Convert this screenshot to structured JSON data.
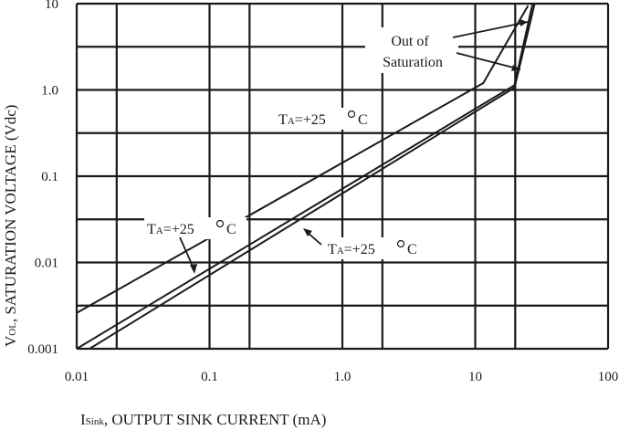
{
  "chart_data": {
    "type": "line",
    "title": "",
    "xlabel": {
      "main": "I",
      "sub": "Sink",
      "rest": ", OUTPUT SINK CURRENT (mA)"
    },
    "ylabel": {
      "main": "V",
      "sub": "OL",
      "rest": ", SATURATION VOLTAGE (Vdc)"
    },
    "x_scale": "log",
    "y_scale": "log",
    "xlim": [
      0.01,
      100
    ],
    "ylim": [
      0.001,
      10
    ],
    "x_ticks": [
      "0.01",
      "0.1",
      "1.0",
      "10",
      "100"
    ],
    "y_ticks": [
      "0.001",
      "0.01",
      "0.1",
      "1.0",
      "10"
    ],
    "grid": true,
    "series": [
      {
        "x": [
          0.01,
          11.5,
          25
        ],
        "y": [
          0.0026,
          1.2,
          9.5
        ]
      },
      {
        "x": [
          0.01,
          20,
          28
        ],
        "y": [
          0.001,
          1.15,
          10
        ]
      },
      {
        "x": [
          0.0125,
          19.5,
          27
        ],
        "y": [
          0.001,
          1.05,
          10
        ]
      }
    ],
    "annotations": {
      "saturation": {
        "line1": "Out of",
        "line2": "Saturation"
      },
      "ta_top": {
        "main": "T",
        "sub": "A",
        "rest": "=+25",
        "unit": "C"
      },
      "ta_left": {
        "main": "T",
        "sub": "A",
        "rest": "=+25",
        "unit": "C"
      },
      "ta_right": {
        "main": "T",
        "sub": "A",
        "rest": "=+25",
        "unit": "C"
      }
    }
  }
}
